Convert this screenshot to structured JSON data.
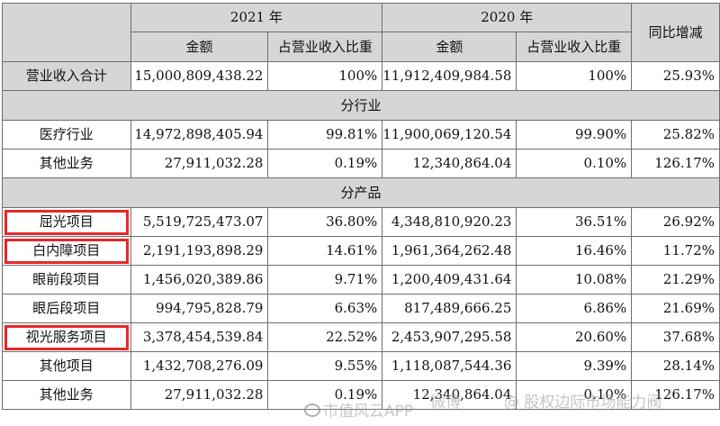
{
  "header": {
    "year_2021": "2021 年",
    "year_2020": "2020 年",
    "yoy": "同比增减",
    "amount_2021": "金额",
    "ratio_2021": "占营业收入比重",
    "amount_2020": "金额",
    "ratio_2020": "占营业收入比重"
  },
  "total": {
    "label": "营业收入合计",
    "a21": "15,000,809,438.22",
    "p21": "100%",
    "a20": "11,912,409,984.58",
    "p20": "100%",
    "yoy": "25.93%"
  },
  "by_industry": {
    "title": "分行业",
    "rows": [
      {
        "label": "医疗行业",
        "a21": "14,972,898,405.94",
        "p21": "99.81%",
        "a20": "11,900,069,120.54",
        "p20": "99.90%",
        "yoy": "25.82%"
      },
      {
        "label": "其他业务",
        "a21": "27,911,032.28",
        "p21": "0.19%",
        "a20": "12,340,864.04",
        "p20": "0.10%",
        "yoy": "126.17%"
      }
    ]
  },
  "by_product": {
    "title": "分产品",
    "rows": [
      {
        "label": "屈光项目",
        "a21": "5,519,725,473.07",
        "p21": "36.80%",
        "a20": "4,348,810,920.23",
        "p20": "36.51%",
        "yoy": "26.92%"
      },
      {
        "label": "白内障项目",
        "a21": "2,191,193,898.29",
        "p21": "14.61%",
        "a20": "1,961,364,262.48",
        "p20": "16.46%",
        "yoy": "11.72%"
      },
      {
        "label": "眼前段项目",
        "a21": "1,456,020,389.86",
        "p21": "9.71%",
        "a20": "1,200,409,431.64",
        "p20": "10.08%",
        "yoy": "21.29%"
      },
      {
        "label": "眼后段项目",
        "a21": "994,795,828.79",
        "p21": "6.63%",
        "a20": "817,489,666.25",
        "p20": "6.86%",
        "yoy": "21.69%"
      },
      {
        "label": "视光服务项目",
        "a21": "3,378,454,539.84",
        "p21": "22.52%",
        "a20": "2,453,907,295.58",
        "p20": "20.60%",
        "yoy": "37.68%"
      },
      {
        "label": "其他项目",
        "a21": "1,432,708,276.09",
        "p21": "9.55%",
        "a20": "1,118,087,544.36",
        "p20": "9.39%",
        "yoy": "28.14%"
      },
      {
        "label": "其他业务",
        "a21": "27,911,032.28",
        "p21": "0.19%",
        "a20": "12,340,864.04",
        "p20": "0.10%",
        "yoy": "126.17%"
      }
    ]
  },
  "watermark": {
    "brand": "市值风云APP",
    "handle": "@ 股权边际市场能力阀",
    "weibo": "微博"
  },
  "colors": {
    "header_bg": "#d6d6d6",
    "highlight": "#e8262b",
    "border": "#6e6e6e"
  }
}
